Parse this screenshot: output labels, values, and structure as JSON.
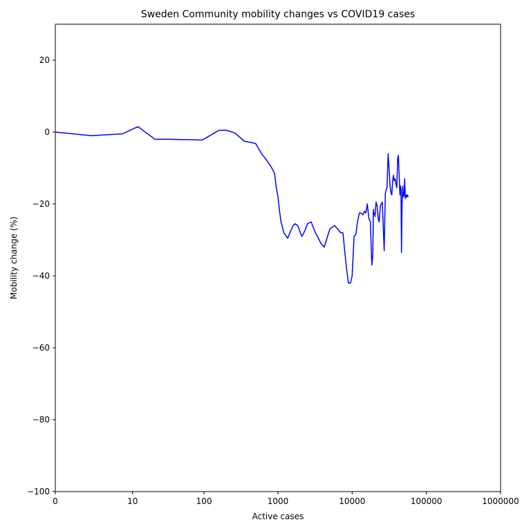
{
  "chart_data": {
    "type": "line",
    "title": "Sweden Community mobility changes vs COVID19 cases",
    "xlabel": "Active cases",
    "ylabel": "Mobility change (%)",
    "x_scale": "symlog",
    "xlim": [
      0,
      1000000
    ],
    "ylim": [
      -100,
      30
    ],
    "x_ticks": [
      {
        "value": 0,
        "label": "0"
      },
      {
        "value": 10,
        "label": "10"
      },
      {
        "value": 100,
        "label": "100"
      },
      {
        "value": 1000,
        "label": "1000"
      },
      {
        "value": 10000,
        "label": "10000"
      },
      {
        "value": 100000,
        "label": "100000"
      },
      {
        "value": 1000000,
        "label": "1000000"
      }
    ],
    "y_ticks": [
      {
        "value": 20,
        "label": "20"
      },
      {
        "value": 0,
        "label": "0"
      },
      {
        "value": -20,
        "label": "−20"
      },
      {
        "value": -40,
        "label": "−40"
      },
      {
        "value": -60,
        "label": "−60"
      },
      {
        "value": -80,
        "label": "−80"
      },
      {
        "value": -100,
        "label": "−100"
      }
    ],
    "grid": false,
    "series": [
      {
        "color": "#0000ff",
        "x": [
          0,
          2,
          7,
          12,
          21,
          34,
          95,
          160,
          200,
          260,
          350,
          500,
          600,
          700,
          800,
          900,
          950,
          1000,
          1050,
          1100,
          1200,
          1350,
          1600,
          1700,
          1850,
          2000,
          2100,
          2300,
          2500,
          2800,
          3200,
          3500,
          3800,
          4200,
          5000,
          5800,
          6700,
          7000,
          7500,
          8400,
          8900,
          9500,
          10000,
          10600,
          11200,
          11800,
          12500,
          13200,
          14000,
          14700,
          15300,
          16000,
          16800,
          17600,
          18400,
          19000,
          19300,
          19600,
          20000,
          20300,
          21000,
          21700,
          22400,
          23100,
          24000,
          25500,
          27000,
          28000,
          28800,
          29500,
          30500,
          31500,
          32200,
          32800,
          33500,
          34200,
          35000,
          36000,
          37000,
          38000,
          39000,
          40000,
          41000,
          42000,
          43000,
          44000,
          44800,
          45500,
          46200,
          47000,
          48000,
          49000,
          50000,
          51000,
          52000,
          53000,
          54000,
          55000,
          55800,
          56600,
          57400
        ],
        "y": [
          0.0,
          -1.0,
          -0.5,
          1.5,
          -2.0,
          -2.0,
          -2.2,
          0.5,
          0.5,
          -0.2,
          -2.5,
          -3.2,
          -6.0,
          -7.8,
          -9.5,
          -11.5,
          -15.5,
          -18.0,
          -22.0,
          -25.0,
          -28.0,
          -29.5,
          -26.0,
          -25.5,
          -26.0,
          -28.0,
          -29.0,
          -27.5,
          -25.5,
          -25.0,
          -28.0,
          -29.5,
          -31.0,
          -32.0,
          -27.0,
          -26.0,
          -27.5,
          -28.0,
          -28.0,
          -38.0,
          -42.0,
          -42.0,
          -40.0,
          -29.0,
          -28.5,
          -25.0,
          -22.5,
          -22.5,
          -23.0,
          -22.0,
          -22.5,
          -20.0,
          -24.0,
          -25.0,
          -37.0,
          -34.0,
          -21.5,
          -23.0,
          -22.5,
          -23.5,
          -19.5,
          -20.5,
          -24.0,
          -25.0,
          -20.5,
          -19.5,
          -33.0,
          -17.0,
          -16.0,
          -15.5,
          -6.0,
          -10.5,
          -14.0,
          -16.0,
          -17.0,
          -17.5,
          -14.0,
          -12.0,
          -13.5,
          -13.0,
          -14.5,
          -15.5,
          -7.5,
          -6.5,
          -12.0,
          -17.5,
          -15.0,
          -16.0,
          -33.5,
          -20.0,
          -15.0,
          -18.0,
          -17.5,
          -13.0,
          -18.5,
          -18.0,
          -17.5,
          -18.0,
          -17.5,
          -18.0,
          -18.0
        ]
      }
    ]
  }
}
